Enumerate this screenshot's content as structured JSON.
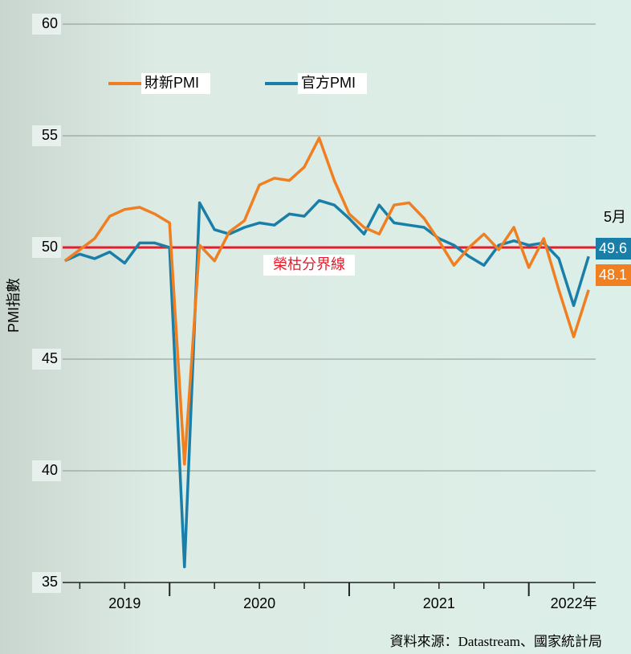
{
  "chart_data": {
    "type": "line",
    "x": [
      2019.417,
      2019.5,
      2019.583,
      2019.667,
      2019.75,
      2019.833,
      2019.917,
      2020.0,
      2020.083,
      2020.167,
      2020.25,
      2020.333,
      2020.417,
      2020.5,
      2020.583,
      2020.667,
      2020.75,
      2020.833,
      2020.917,
      2021.0,
      2021.083,
      2021.167,
      2021.25,
      2021.333,
      2021.417,
      2021.5,
      2021.583,
      2021.667,
      2021.75,
      2021.833,
      2021.917,
      2022.0,
      2022.083,
      2022.167,
      2022.25,
      2022.333
    ],
    "series": [
      {
        "name": "財新PMI",
        "color": "#f07f22",
        "values": [
          49.4,
          49.9,
          50.4,
          51.4,
          51.7,
          51.8,
          51.5,
          51.1,
          40.3,
          50.1,
          49.4,
          50.7,
          51.2,
          52.8,
          53.1,
          53.0,
          53.6,
          54.9,
          53.0,
          51.5,
          50.9,
          50.6,
          51.9,
          52.0,
          51.3,
          50.3,
          49.2,
          50.0,
          50.6,
          49.9,
          50.9,
          49.1,
          50.4,
          48.1,
          46.0,
          48.1
        ]
      },
      {
        "name": "官方PMI",
        "color": "#1a7fa8",
        "values": [
          49.4,
          49.7,
          49.5,
          49.8,
          49.3,
          50.2,
          50.2,
          50.0,
          35.7,
          52.0,
          50.8,
          50.6,
          50.9,
          51.1,
          51.0,
          51.5,
          51.4,
          52.1,
          51.9,
          51.3,
          50.6,
          51.9,
          51.1,
          51.0,
          50.9,
          50.4,
          50.1,
          49.6,
          49.2,
          50.1,
          50.3,
          50.1,
          50.2,
          49.5,
          47.4,
          49.6
        ]
      }
    ],
    "ylim": [
      35,
      60
    ],
    "yticks": [
      35,
      40,
      45,
      50,
      55,
      60
    ],
    "grid": true,
    "xlim": [
      2019.4,
      2022.35
    ],
    "xticks": [
      2020,
      2021,
      2022
    ],
    "xminorticks": [
      2019.5,
      2019.75,
      2020.25,
      2020.5,
      2020.75,
      2021.25,
      2021.5,
      2021.75,
      2022.25
    ],
    "xlabels": [
      {
        "value": 2019.75,
        "label": "2019"
      },
      {
        "value": 2020.5,
        "label": "2020"
      },
      {
        "value": 2021.5,
        "label": "2021"
      },
      {
        "value": 2022.25,
        "label": "2022年"
      }
    ],
    "ylabel": "PMI指數",
    "end_label": "5月",
    "reference_line": {
      "value": 50,
      "label": "榮枯分界線",
      "color": "#e31e2d"
    },
    "source": "資料來源：Datastream、國家統計局"
  }
}
